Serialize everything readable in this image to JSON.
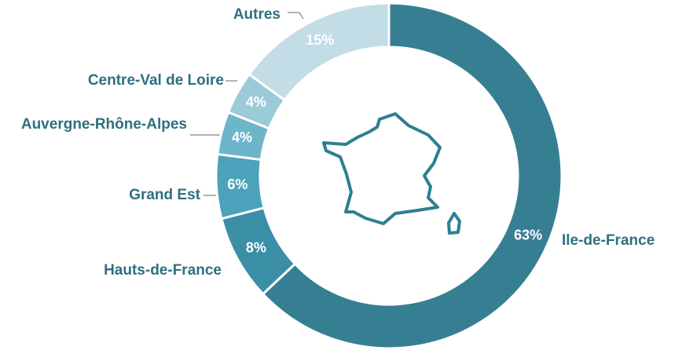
{
  "chart_data": {
    "type": "donut",
    "categories": [
      "Ile-de-France",
      "Hauts-de-France",
      "Grand Est",
      "Auvergne-Rhône-Alpes",
      "Centre-Val de Loire",
      "Autres"
    ],
    "values": [
      63,
      8,
      6,
      4,
      4,
      15
    ],
    "value_labels": [
      "63%",
      "8%",
      "6%",
      "4%",
      "4%",
      "15%"
    ],
    "colors": [
      "#367f93",
      "#3a8fa6",
      "#4aa3bb",
      "#6db6ca",
      "#9bcad8",
      "#c3dde6"
    ]
  }
}
